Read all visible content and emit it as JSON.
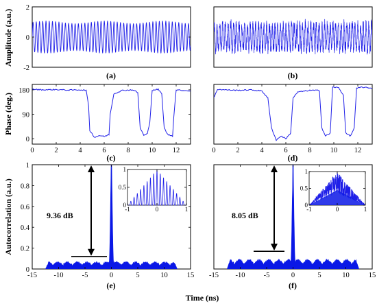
{
  "figure": {
    "ylabels": {
      "amplitude": "Amplitude (a.u.)",
      "phase": "Phase (deg.)",
      "autocorrelation": "Autocorrelation (a.u.)"
    },
    "xlabel": "Time (ns)",
    "panel_labels": [
      "(a)",
      "(b)",
      "(c)",
      "(d)",
      "(e)",
      "(f)"
    ],
    "annotations": {
      "e": "9.36 dB",
      "f": "8.05 dB"
    }
  },
  "colors": {
    "trace": "#1f1fe8",
    "fill": "#0a18e6",
    "axis": "#000000"
  },
  "chart_data": [
    {
      "panel": "a",
      "type": "line",
      "xlabel": "",
      "ylabel": "Amplitude (a.u.)",
      "xlim": [
        0,
        13.2
      ],
      "ylim": [
        -2,
        2
      ],
      "yticks": [
        -2,
        0,
        2
      ],
      "ytick_labels": [
        "-2",
        "0",
        "2"
      ],
      "xticks": [],
      "series": [
        {
          "shape": "periodic oscillation",
          "x_range": [
            0,
            13.2
          ],
          "amplitude": 1.05,
          "period": 0.27
        }
      ]
    },
    {
      "panel": "b",
      "type": "line",
      "xlabel": "",
      "ylabel": "",
      "xlim": [
        0,
        13.2
      ],
      "ylim": [
        -2,
        2
      ],
      "yticks": [],
      "xticks": [],
      "series": [
        {
          "shape": "noisy oscillation",
          "x_range": [
            0,
            13.2
          ],
          "amplitude": 1.0
        }
      ]
    },
    {
      "panel": "c",
      "type": "line",
      "xlabel": "",
      "ylabel": "Phase (deg.)",
      "xlim": [
        0,
        13.2
      ],
      "ylim": [
        -20,
        200
      ],
      "yticks": [
        0,
        90,
        180
      ],
      "ytick_labels": [
        "0",
        "90",
        "180"
      ],
      "xticks": [
        0,
        2,
        4,
        6,
        8,
        10,
        12
      ],
      "xtick_labels": [
        "0",
        "2",
        "4",
        "6",
        "8",
        "10",
        "12"
      ],
      "series": [
        {
          "x": [
            0,
            1,
            2,
            3,
            4,
            4.5,
            4.7,
            4.8,
            5.2,
            5.6,
            6.0,
            6.4,
            6.5,
            6.8,
            7.5,
            8.4,
            8.8,
            9.0,
            9.3,
            9.6,
            9.8,
            10.0,
            10.5,
            10.8,
            11.0,
            11.3,
            11.7,
            11.8,
            12.0,
            12.5,
            13.2
          ],
          "y": [
            182,
            180,
            181,
            179,
            180,
            178,
            120,
            30,
            5,
            12,
            8,
            15,
            90,
            165,
            178,
            180,
            170,
            40,
            12,
            18,
            60,
            178,
            182,
            165,
            40,
            15,
            10,
            80,
            180,
            178,
            176
          ]
        }
      ]
    },
    {
      "panel": "d",
      "type": "line",
      "xlabel": "",
      "ylabel": "",
      "xlim": [
        0,
        13.2
      ],
      "ylim": [
        -20,
        200
      ],
      "yticks": [],
      "xticks": [
        0,
        2,
        4,
        6,
        8,
        10,
        12
      ],
      "xtick_labels": [
        "0",
        "2",
        "4",
        "6",
        "8",
        "10",
        "12"
      ],
      "series": [
        {
          "x": [
            0,
            0.3,
            1,
            2,
            3,
            4,
            4.5,
            4.8,
            5.2,
            5.6,
            6.0,
            6.4,
            6.6,
            7.0,
            8.0,
            8.8,
            9.0,
            9.3,
            9.7,
            9.9,
            10.4,
            10.8,
            11.0,
            11.4,
            11.7,
            11.9,
            12.3,
            13.2
          ],
          "y": [
            150,
            182,
            180,
            178,
            180,
            176,
            150,
            40,
            -5,
            10,
            0,
            20,
            150,
            172,
            178,
            178,
            40,
            10,
            20,
            190,
            188,
            160,
            20,
            10,
            40,
            185,
            190,
            186
          ]
        }
      ]
    },
    {
      "panel": "e",
      "type": "area",
      "xlabel": "Time (ns)",
      "ylabel": "Autocorrelation (a.u.)",
      "xlim": [
        -15,
        15
      ],
      "ylim": [
        0,
        1
      ],
      "xticks": [
        -15,
        -10,
        -5,
        0,
        5,
        10,
        15
      ],
      "xtick_labels": [
        "-15",
        "-10",
        "-5",
        "0",
        "5",
        "10",
        "15"
      ],
      "yticks": [
        0,
        0.2,
        0.4,
        0.6,
        0.8,
        1
      ],
      "ytick_labels": [
        "0",
        "0.2",
        "0.4",
        "0.6",
        "0.8",
        "1"
      ],
      "series": [
        {
          "peak_x": 0,
          "peak_y": 1.0,
          "floor_level": 0.05,
          "x_range": [
            -12.5,
            12.5
          ]
        }
      ],
      "annotation": {
        "text": "9.36 dB",
        "arrow_from": 0.12,
        "arrow_to": 1.0,
        "marker_y": 0.12
      },
      "inset": {
        "xlim": [
          -1,
          1
        ],
        "ylim": [
          0,
          1
        ],
        "xticks": [
          -1,
          0,
          1
        ],
        "yticks": [
          0,
          0.5,
          1
        ],
        "xtick_labels": [
          "-1",
          "0",
          "1"
        ],
        "ytick_labels": [
          "0",
          "0.5",
          "1"
        ],
        "shape": "comb"
      }
    },
    {
      "panel": "f",
      "type": "area",
      "xlabel": "",
      "ylabel": "",
      "xlim": [
        -15,
        15
      ],
      "ylim": [
        0,
        1
      ],
      "xticks": [
        -15,
        -10,
        -5,
        0,
        5,
        10,
        15
      ],
      "xtick_labels": [
        "-15",
        "-10",
        "-5",
        "0",
        "5",
        "10",
        "15"
      ],
      "yticks": [],
      "series": [
        {
          "peak_x": 0,
          "peak_y": 1.0,
          "floor_level": 0.07,
          "x_range": [
            -12.5,
            12.5
          ]
        }
      ],
      "annotation": {
        "text": "8.05 dB",
        "arrow_from": 0.17,
        "arrow_to": 1.0,
        "marker_y": 0.17
      },
      "inset": {
        "xlim": [
          -1,
          1
        ],
        "ylim": [
          0,
          1
        ],
        "xticks": [
          -1,
          0,
          1
        ],
        "yticks": [
          0,
          0.5,
          1
        ],
        "xtick_labels": [
          "-1",
          "0",
          "1"
        ],
        "ytick_labels": [
          "0",
          "0.5",
          "1"
        ],
        "shape": "noisy"
      }
    }
  ]
}
